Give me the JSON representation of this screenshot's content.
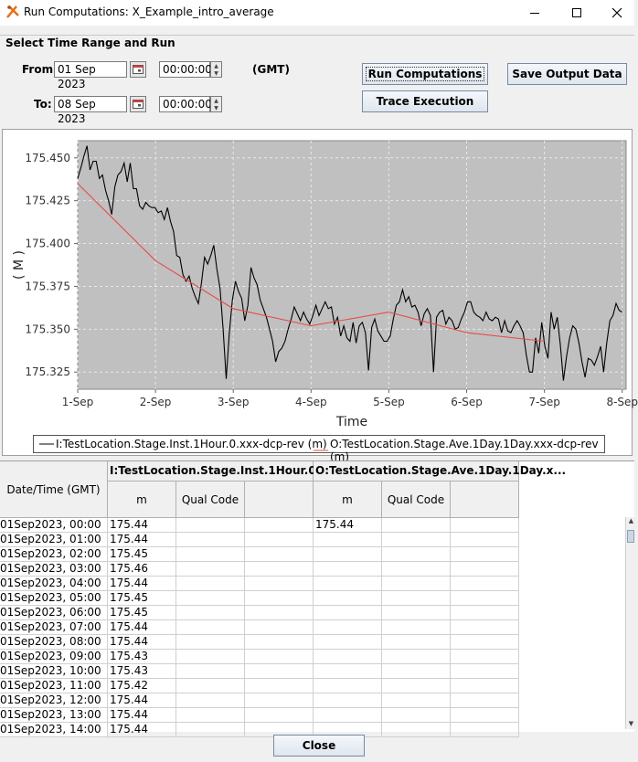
{
  "window": {
    "title": "Run Computations: X_Example_intro_average",
    "minimize_label": "—",
    "maximize_label": "☐",
    "close_label": "✕"
  },
  "time_range": {
    "group_title": "Select Time Range and Run",
    "from_label": "From:",
    "from_date": "01 Sep 2023",
    "from_time": "00:00:00",
    "to_label": "To:",
    "to_date": "08 Sep 2023",
    "to_time": "00:00:00",
    "timezone": "(GMT)"
  },
  "buttons": {
    "run": "Run Computations",
    "trace": "Trace Execution",
    "save": "Save Output Data",
    "close": "Close"
  },
  "chart_data": {
    "type": "line",
    "xlabel": "Time",
    "ylabel": "( M )",
    "x_ticks": [
      "1-Sep",
      "2-Sep",
      "3-Sep",
      "4-Sep",
      "5-Sep",
      "6-Sep",
      "7-Sep",
      "8-Sep"
    ],
    "y_ticks": [
      "175.450",
      "175.425",
      "175.400",
      "175.375",
      "175.350",
      "175.325"
    ],
    "xlim": [
      0,
      7.05
    ],
    "ylim": [
      175.315,
      175.46
    ],
    "grid": true,
    "plot_background": "#c0c0c0",
    "series": [
      {
        "name": "I:TestLocation.Stage.Inst.1Hour.0.xxx-dcp-rev (m)",
        "color": "#000000",
        "x_unit_days_from_1_sep": true,
        "values": [
          175.438,
          175.444,
          175.451,
          175.457,
          175.443,
          175.448,
          175.448,
          175.438,
          175.44,
          175.431,
          175.425,
          175.417,
          175.433,
          175.44,
          175.442,
          175.447,
          175.436,
          175.447,
          175.432,
          175.432,
          175.422,
          175.42,
          175.424,
          175.422,
          175.421,
          175.421,
          175.418,
          175.419,
          175.414,
          175.421,
          175.413,
          175.407,
          175.393,
          175.392,
          175.382,
          175.378,
          175.381,
          175.374,
          175.369,
          175.365,
          175.377,
          175.392,
          175.388,
          175.393,
          175.399,
          175.385,
          175.374,
          175.35,
          175.321,
          175.348,
          175.367,
          175.378,
          175.372,
          175.368,
          175.355,
          175.364,
          175.386,
          175.38,
          175.376,
          175.367,
          175.362,
          175.357,
          175.35,
          175.343,
          175.331,
          175.337,
          175.339,
          175.343,
          175.35,
          175.356,
          175.363,
          175.359,
          175.355,
          175.36,
          175.356,
          175.353,
          175.358,
          175.364,
          175.358,
          175.362,
          175.366,
          175.362,
          175.363,
          175.353,
          175.357,
          175.346,
          175.352,
          175.345,
          175.343,
          175.354,
          175.342,
          175.352,
          175.354,
          175.348,
          175.326,
          175.351,
          175.356,
          175.349,
          175.346,
          175.343,
          175.343,
          175.346,
          175.356,
          175.364,
          175.366,
          175.373,
          175.366,
          175.369,
          175.363,
          175.364,
          175.36,
          175.352,
          175.359,
          175.362,
          175.358,
          175.325,
          175.357,
          175.36,
          175.361,
          175.353,
          175.357,
          175.355,
          175.35,
          175.351,
          175.356,
          175.36,
          175.366,
          175.366,
          175.36,
          175.358,
          175.357,
          175.355,
          175.36,
          175.356,
          175.355,
          175.357,
          175.356,
          175.348,
          175.355,
          175.349,
          175.348,
          175.352,
          175.355,
          175.352,
          175.348,
          175.335,
          175.325,
          175.325,
          175.345,
          175.336,
          175.354,
          175.34,
          175.333,
          175.36,
          175.35,
          175.357,
          175.341,
          175.32,
          175.334,
          175.345,
          175.352,
          175.35,
          175.342,
          175.331,
          175.322,
          175.333,
          175.332,
          175.329,
          175.334,
          175.34,
          175.325,
          175.342,
          175.355,
          175.358,
          175.365,
          175.361,
          175.36
        ]
      },
      {
        "name": "O:TestLocation.Stage.Ave.1Day.1Day.xxx-dcp-rev (m)",
        "color": "#e74c4c",
        "x": [
          0,
          1,
          2,
          3,
          4,
          5,
          6
        ],
        "values": [
          175.435,
          175.39,
          175.362,
          175.352,
          175.36,
          175.348,
          175.343
        ]
      }
    ]
  },
  "legend": {
    "entries": [
      {
        "label": "I:TestLocation.Stage.Inst.1Hour.0.xxx-dcp-rev (m)",
        "color": "#000000"
      },
      {
        "label": "O:TestLocation.Stage.Ave.1Day.1Day.xxx-dcp-rev (m)",
        "color": "#e74c4c"
      }
    ]
  },
  "table": {
    "datetime_header": "Date/Time (GMT)",
    "groups": [
      {
        "title": "I:TestLocation.Stage.Inst.1Hour.0.xxx-d...",
        "unit": "m",
        "qual": "Qual Code"
      },
      {
        "title": "O:TestLocation.Stage.Ave.1Day.1Day.x...",
        "unit": "m",
        "qual": "Qual Code"
      }
    ],
    "rows": [
      {
        "dt": "01Sep2023, 00:00",
        "v1": "175.44",
        "v2": "175.44"
      },
      {
        "dt": "01Sep2023, 01:00",
        "v1": "175.44",
        "v2": ""
      },
      {
        "dt": "01Sep2023, 02:00",
        "v1": "175.45",
        "v2": ""
      },
      {
        "dt": "01Sep2023, 03:00",
        "v1": "175.46",
        "v2": ""
      },
      {
        "dt": "01Sep2023, 04:00",
        "v1": "175.44",
        "v2": ""
      },
      {
        "dt": "01Sep2023, 05:00",
        "v1": "175.45",
        "v2": ""
      },
      {
        "dt": "01Sep2023, 06:00",
        "v1": "175.45",
        "v2": ""
      },
      {
        "dt": "01Sep2023, 07:00",
        "v1": "175.44",
        "v2": ""
      },
      {
        "dt": "01Sep2023, 08:00",
        "v1": "175.44",
        "v2": ""
      },
      {
        "dt": "01Sep2023, 09:00",
        "v1": "175.43",
        "v2": ""
      },
      {
        "dt": "01Sep2023, 10:00",
        "v1": "175.43",
        "v2": ""
      },
      {
        "dt": "01Sep2023, 11:00",
        "v1": "175.42",
        "v2": ""
      },
      {
        "dt": "01Sep2023, 12:00",
        "v1": "175.44",
        "v2": ""
      },
      {
        "dt": "01Sep2023, 13:00",
        "v1": "175.44",
        "v2": ""
      },
      {
        "dt": "01Sep2023, 14:00",
        "v1": "175.44",
        "v2": ""
      }
    ]
  }
}
